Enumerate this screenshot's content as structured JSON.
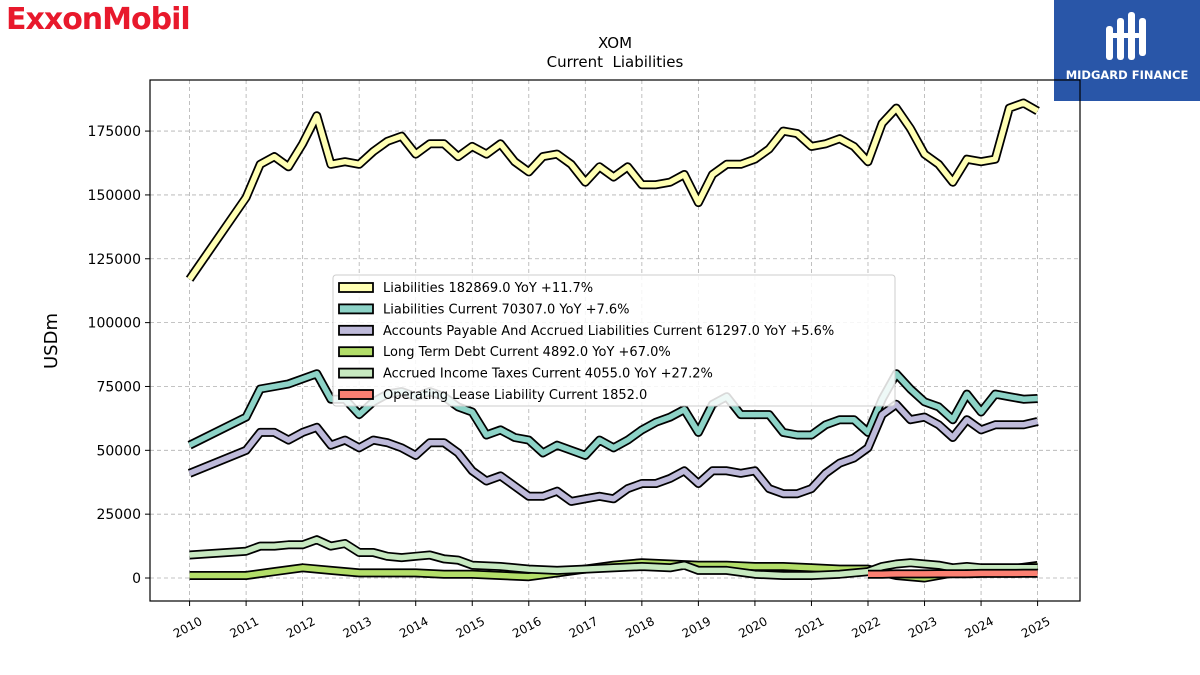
{
  "brand": {
    "left_logo": "ExxonMobil",
    "left_logo_color": "#e8192c",
    "right_logo": "MIDGARD FINANCE",
    "right_logo_bg": "#2956a8"
  },
  "chart_data": {
    "type": "line",
    "title": "XOM",
    "subtitle": "Current  Liabilities",
    "ylabel": "USDm",
    "xlim": [
      2009.3,
      2025.75
    ],
    "ylim": [
      -9000,
      195000
    ],
    "yticks": [
      0,
      25000,
      50000,
      75000,
      100000,
      125000,
      150000,
      175000
    ],
    "ytick_labels": [
      "0",
      "25000",
      "50000",
      "75000",
      "100000",
      "125000",
      "150000",
      "175000"
    ],
    "xticks": [
      2010,
      2011,
      2012,
      2013,
      2014,
      2015,
      2016,
      2017,
      2018,
      2019,
      2020,
      2021,
      2022,
      2023,
      2024,
      2025
    ],
    "xtick_labels": [
      "2010",
      "2011",
      "2012",
      "2013",
      "2014",
      "2015",
      "2016",
      "2017",
      "2018",
      "2019",
      "2020",
      "2021",
      "2022",
      "2023",
      "2024",
      "2025"
    ],
    "grid": true,
    "legend_position": "center",
    "series": [
      {
        "name": "Liabilities",
        "legend": "Liabilities  182869.0 YoY +11.7%",
        "color": "#ffffb3",
        "x": [
          2010.0,
          2011.0,
          2011.25,
          2011.5,
          2011.75,
          2012.0,
          2012.25,
          2012.5,
          2012.75,
          2013.0,
          2013.25,
          2013.5,
          2013.75,
          2014.0,
          2014.25,
          2014.5,
          2014.75,
          2015.0,
          2015.25,
          2015.5,
          2015.75,
          2016.0,
          2016.25,
          2016.5,
          2016.75,
          2017.0,
          2017.25,
          2017.5,
          2017.75,
          2018.0,
          2018.25,
          2018.5,
          2018.75,
          2019.0,
          2019.25,
          2019.5,
          2019.75,
          2020.0,
          2020.25,
          2020.5,
          2020.75,
          2021.0,
          2021.25,
          2021.5,
          2021.75,
          2022.0,
          2022.25,
          2022.5,
          2022.75,
          2023.0,
          2023.25,
          2023.5,
          2023.75,
          2024.0,
          2024.25,
          2024.5,
          2024.75,
          2025.0
        ],
        "y": [
          117000,
          149000,
          162000,
          165000,
          161000,
          170000,
          181000,
          162000,
          163000,
          162000,
          167000,
          171000,
          173000,
          166000,
          170000,
          170000,
          165000,
          169000,
          166000,
          170000,
          163000,
          159000,
          165000,
          166000,
          162000,
          155000,
          161000,
          157000,
          161000,
          154000,
          154000,
          155000,
          158000,
          147000,
          158000,
          162000,
          162000,
          164000,
          168000,
          175000,
          174000,
          169000,
          170000,
          172000,
          169000,
          163000,
          178000,
          184000,
          176000,
          166000,
          162000,
          155000,
          164000,
          163000,
          164000,
          184000,
          186000,
          182869
        ]
      },
      {
        "name": "Liabilities Current",
        "legend": "Liabilities Current  70307.0 YoY +7.6%",
        "color": "#8dd3c7",
        "x": [
          2010.0,
          2011.0,
          2011.25,
          2011.5,
          2011.75,
          2012.0,
          2012.25,
          2012.5,
          2012.75,
          2013.0,
          2013.25,
          2013.5,
          2013.75,
          2014.0,
          2014.25,
          2014.5,
          2014.75,
          2015.0,
          2015.25,
          2015.5,
          2015.75,
          2016.0,
          2016.25,
          2016.5,
          2016.75,
          2017.0,
          2017.25,
          2017.5,
          2017.75,
          2018.0,
          2018.25,
          2018.5,
          2018.75,
          2019.0,
          2019.25,
          2019.5,
          2019.75,
          2020.0,
          2020.25,
          2020.5,
          2020.75,
          2021.0,
          2021.25,
          2021.5,
          2021.75,
          2022.0,
          2022.25,
          2022.5,
          2022.75,
          2023.0,
          2023.25,
          2023.5,
          2023.75,
          2024.0,
          2024.25,
          2024.5,
          2024.75,
          2025.0
        ],
        "y": [
          52000,
          63000,
          74000,
          75000,
          76000,
          78000,
          80000,
          70000,
          70000,
          64000,
          69000,
          72000,
          73000,
          71000,
          73000,
          71000,
          67000,
          65000,
          56000,
          58000,
          55000,
          54000,
          49000,
          52000,
          50000,
          48000,
          54000,
          51000,
          54000,
          58000,
          61000,
          63000,
          66000,
          57000,
          68000,
          71000,
          64000,
          64000,
          64000,
          57000,
          56000,
          56000,
          60000,
          62000,
          62000,
          57000,
          70000,
          80000,
          74000,
          69000,
          67000,
          62000,
          72000,
          65000,
          72000,
          71000,
          70000,
          70307
        ]
      },
      {
        "name": "Accounts Payable And Accrued Liabilities Current",
        "legend": "Accounts Payable And Accrued Liabilities Current  61297.0 YoY +5.6%",
        "color": "#bebada",
        "x": [
          2010.0,
          2011.0,
          2011.25,
          2011.5,
          2011.75,
          2012.0,
          2012.25,
          2012.5,
          2012.75,
          2013.0,
          2013.25,
          2013.5,
          2013.75,
          2014.0,
          2014.25,
          2014.5,
          2014.75,
          2015.0,
          2015.25,
          2015.5,
          2015.75,
          2016.0,
          2016.25,
          2016.5,
          2016.75,
          2017.0,
          2017.25,
          2017.5,
          2017.75,
          2018.0,
          2018.25,
          2018.5,
          2018.75,
          2019.0,
          2019.25,
          2019.5,
          2019.75,
          2020.0,
          2020.25,
          2020.5,
          2020.75,
          2021.0,
          2021.25,
          2021.5,
          2021.75,
          2022.0,
          2022.25,
          2022.5,
          2022.75,
          2023.0,
          2023.25,
          2023.5,
          2023.75,
          2024.0,
          2024.25,
          2024.5,
          2024.75,
          2025.0
        ],
        "y": [
          41000,
          50000,
          57000,
          57000,
          54000,
          57000,
          59000,
          52000,
          54000,
          51000,
          54000,
          53000,
          51000,
          48000,
          53000,
          53000,
          49000,
          42000,
          38000,
          40000,
          36000,
          32000,
          32000,
          34000,
          30000,
          31000,
          32000,
          31000,
          35000,
          37000,
          37000,
          39000,
          42000,
          37000,
          42000,
          42000,
          41000,
          42000,
          35000,
          33000,
          33000,
          35000,
          41000,
          45000,
          47000,
          51000,
          64000,
          68000,
          62000,
          63000,
          60000,
          55000,
          62000,
          58000,
          60000,
          60000,
          60000,
          61297
        ]
      },
      {
        "name": "Long Term Debt Current",
        "legend": "Long Term Debt Current  4892.0 YoY +67.0%",
        "color": "#b3de69",
        "x": [
          2010.0,
          2011.0,
          2011.5,
          2012.0,
          2012.5,
          2013.0,
          2013.5,
          2014.0,
          2014.5,
          2015.0,
          2015.5,
          2016.0,
          2016.5,
          2017.0,
          2017.5,
          2018.0,
          2018.5,
          2019.0,
          2019.5,
          2020.0,
          2020.5,
          2021.0,
          2021.5,
          2022.0,
          2022.5,
          2023.0,
          2023.5,
          2024.0,
          2024.5,
          2025.0
        ],
        "y": [
          1000,
          1000,
          2500,
          4000,
          3000,
          2000,
          2000,
          2000,
          1500,
          1500,
          1000,
          500,
          2000,
          3500,
          5000,
          6000,
          5500,
          5000,
          5000,
          4500,
          4500,
          4000,
          3500,
          3500,
          1000,
          0,
          2000,
          2800,
          3500,
          4892
        ]
      },
      {
        "name": "Accrued Income Taxes Current",
        "legend": "Accrued Income Taxes Current  4055.0 YoY +27.2%",
        "color": "#c7e9c0",
        "x": [
          2010.0,
          2011.0,
          2011.25,
          2011.5,
          2011.75,
          2012.0,
          2012.25,
          2012.5,
          2012.75,
          2013.0,
          2013.25,
          2013.5,
          2013.75,
          2014.0,
          2014.25,
          2014.5,
          2014.75,
          2015.0,
          2015.5,
          2016.0,
          2016.5,
          2017.0,
          2017.5,
          2018.0,
          2018.5,
          2018.75,
          2019.0,
          2019.5,
          2020.0,
          2020.5,
          2021.0,
          2021.5,
          2022.0,
          2022.25,
          2022.5,
          2022.75,
          2023.0,
          2023.25,
          2023.5,
          2023.75,
          2024.0,
          2024.5,
          2025.0
        ],
        "y": [
          9000,
          10500,
          12500,
          12500,
          13000,
          13000,
          15000,
          12500,
          13500,
          10000,
          10000,
          8500,
          8000,
          8500,
          9000,
          7500,
          7000,
          5000,
          4500,
          3500,
          3000,
          3500,
          4000,
          4500,
          4000,
          5000,
          3000,
          3000,
          1500,
          1000,
          1000,
          1500,
          2500,
          4500,
          5500,
          6000,
          5500,
          5000,
          4000,
          4500,
          4000,
          4000,
          4055
        ]
      },
      {
        "name": "Operating Lease Liability Current",
        "legend": "Operating Lease Liability Current  1852.0",
        "color": "#fb8072",
        "x": [
          2022.0,
          2022.25,
          2022.5,
          2022.75,
          2023.0,
          2023.25,
          2023.5,
          2023.75,
          2024.0,
          2024.25,
          2024.5,
          2024.75,
          2025.0
        ],
        "y": [
          1500,
          1500,
          1600,
          1600,
          1600,
          1700,
          1700,
          1700,
          1800,
          1800,
          1800,
          1850,
          1852
        ]
      }
    ]
  }
}
